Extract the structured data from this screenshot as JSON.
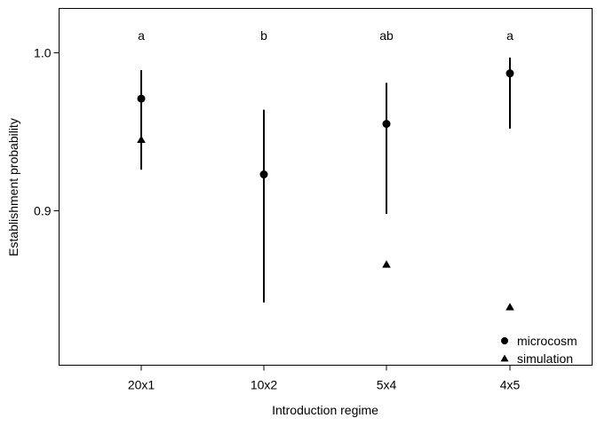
{
  "chart_data": {
    "type": "scatter",
    "title": "",
    "xlabel": "Introduction regime",
    "ylabel": "Establishment probability",
    "categories": [
      "20x1",
      "10x2",
      "5x4",
      "4x5"
    ],
    "ylim": [
      0.8,
      1.028
    ],
    "y_ticks": [
      0.9,
      1.0
    ],
    "y_tick_labels": [
      "0.9",
      "1.0"
    ],
    "grid": false,
    "legend": {
      "position": "bottom-right",
      "entries": [
        "microcosm",
        "simulation"
      ]
    },
    "series": [
      {
        "name": "microcosm",
        "marker": "circle",
        "values": [
          0.971,
          0.923,
          0.955,
          0.987
        ],
        "lower": [
          0.926,
          0.842,
          0.898,
          0.952
        ],
        "upper": [
          0.989,
          0.964,
          0.981,
          0.997
        ]
      },
      {
        "name": "simulation",
        "marker": "triangle",
        "values": [
          0.945,
          null,
          0.866,
          0.839
        ]
      }
    ],
    "annotations": [
      "a",
      "b",
      "ab",
      "a"
    ]
  }
}
